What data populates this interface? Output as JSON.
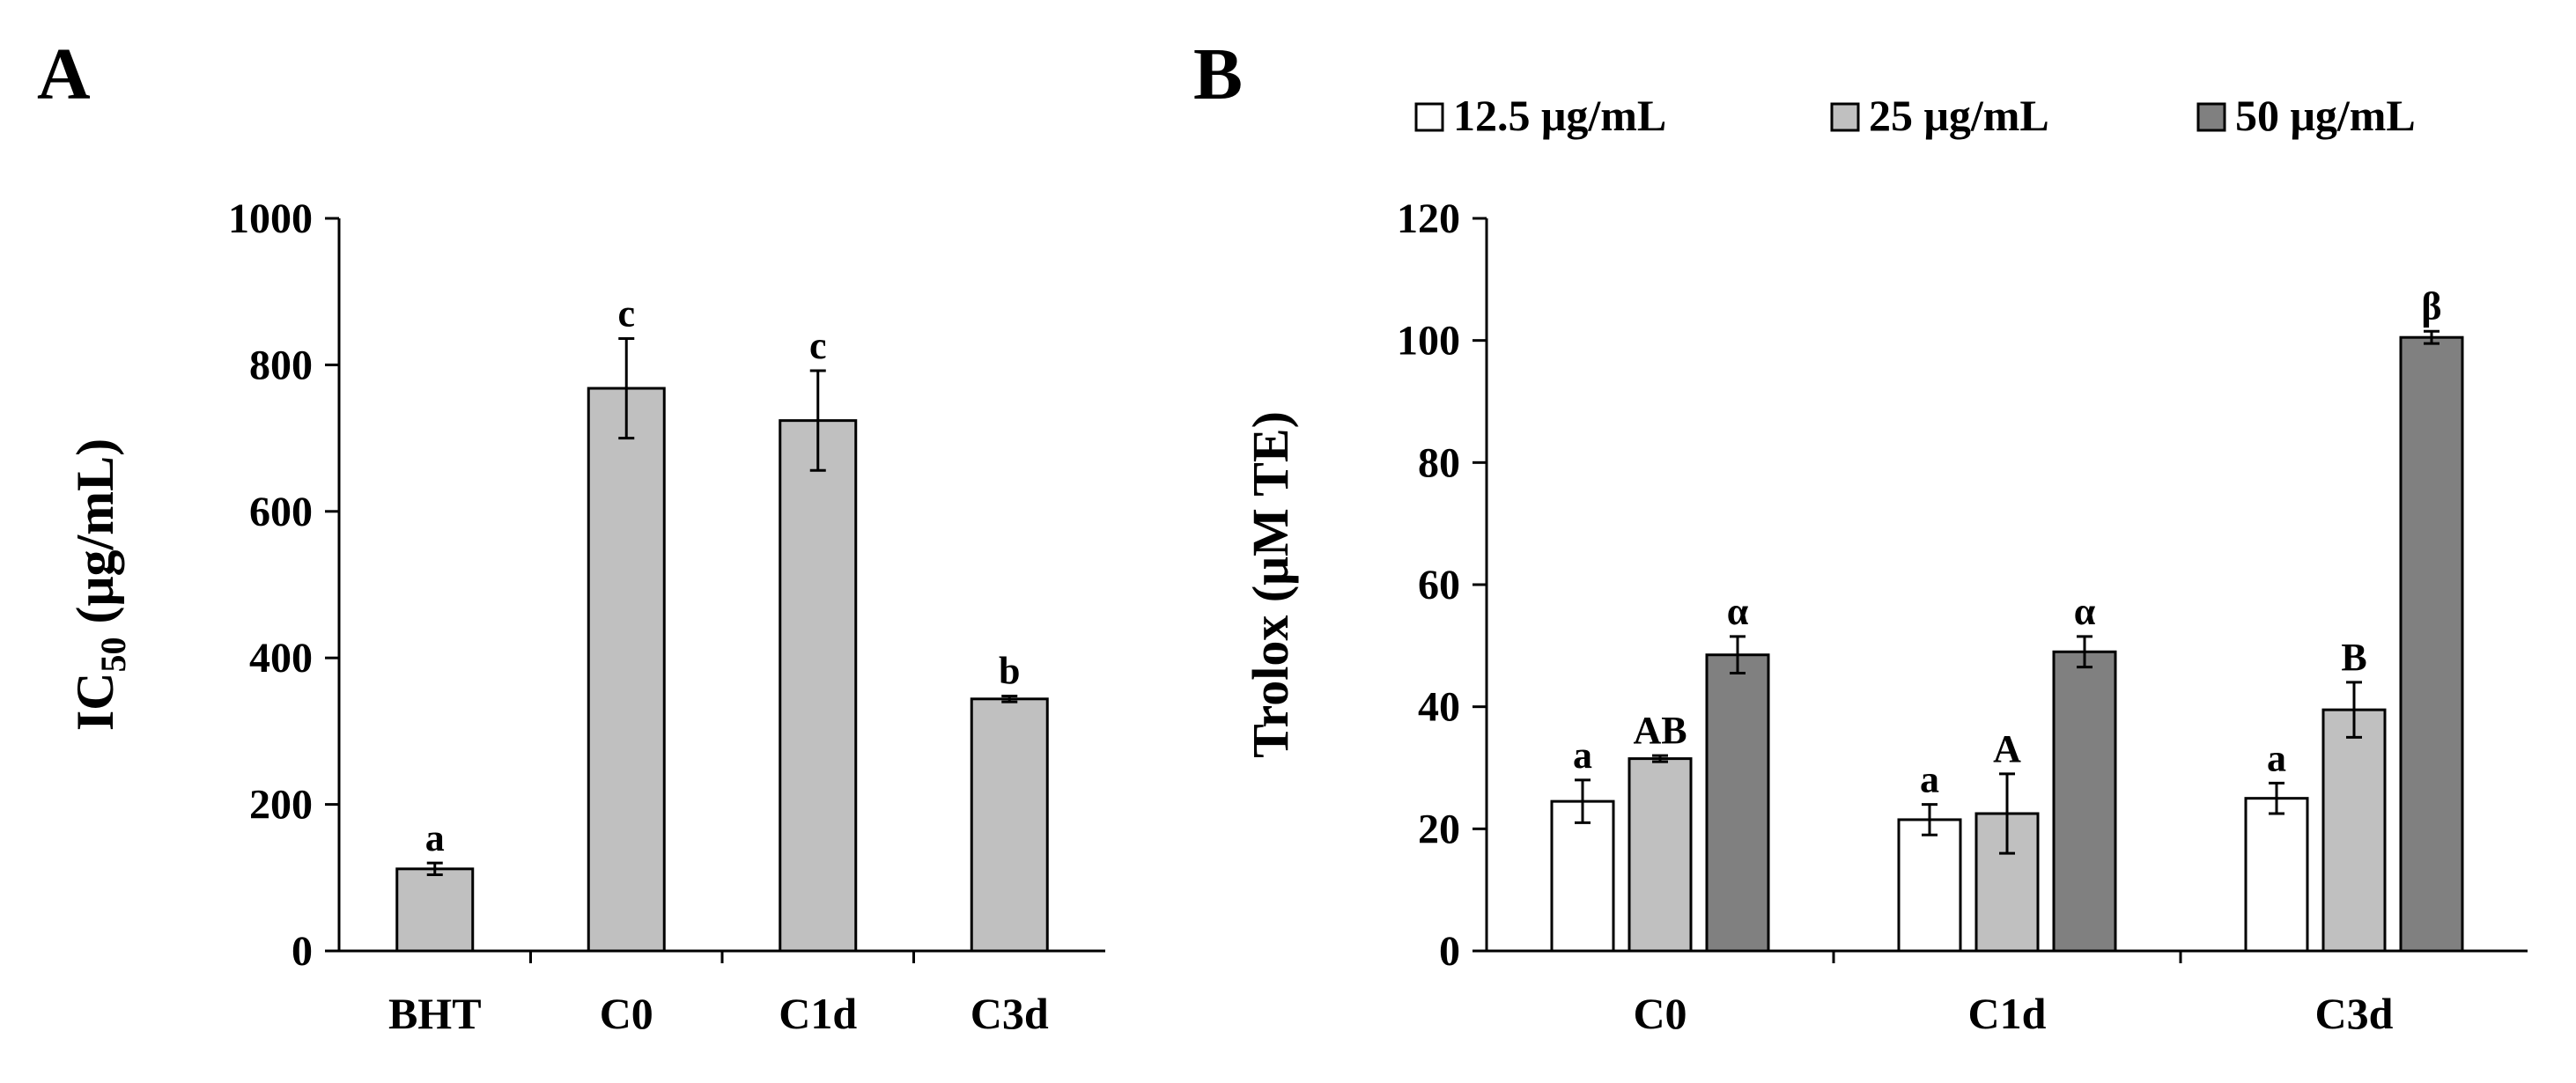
{
  "chart_data": [
    {
      "panel": "A",
      "type": "bar",
      "title": "",
      "ylabel_main": "IC",
      "ylabel_sub": "50",
      "ylabel_unit": "(μg/mL)",
      "ylim": [
        0,
        1000
      ],
      "yticks": [
        0,
        200,
        400,
        600,
        800,
        1000
      ],
      "categories": [
        "BHT",
        "C0",
        "C1d",
        "C3d"
      ],
      "series": [
        {
          "name": "IC50",
          "color": "#c0c0c0",
          "values": [
            112,
            768,
            724,
            344
          ],
          "errors": [
            8,
            68,
            68,
            4
          ],
          "letters": [
            "a",
            "c",
            "c",
            "b"
          ]
        }
      ]
    },
    {
      "panel": "B",
      "type": "bar",
      "title": "",
      "ylabel": "Trolox  (μM TE)",
      "ylim": [
        0,
        120
      ],
      "yticks": [
        0,
        20,
        40,
        60,
        80,
        100,
        120
      ],
      "categories": [
        "C0",
        "C1d",
        "C3d"
      ],
      "legend_position": "top",
      "series": [
        {
          "name": "12.5 μg/mL",
          "color": "#ffffff",
          "values": [
            24.5,
            21.5,
            25
          ],
          "errors": [
            3.5,
            2.5,
            2.5
          ],
          "letters": [
            "a",
            "a",
            "a"
          ]
        },
        {
          "name": "25 μg/mL",
          "color": "#c0c0c0",
          "values": [
            31.5,
            22.5,
            39.5
          ],
          "errors": [
            0.5,
            6.5,
            4.5
          ],
          "letters": [
            "AB",
            "A",
            "B"
          ]
        },
        {
          "name": "50 μg/mL",
          "color": "#808080",
          "values": [
            48.5,
            49,
            100.5
          ],
          "errors": [
            3,
            2.5,
            1
          ],
          "letters": [
            "α",
            "α",
            "β"
          ]
        }
      ]
    }
  ]
}
